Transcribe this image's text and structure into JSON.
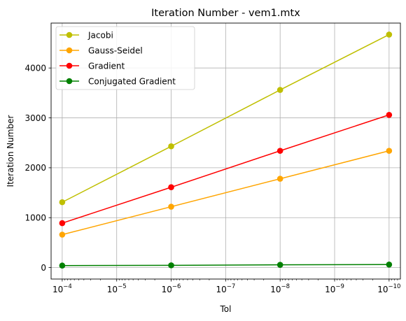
{
  "chart_data": {
    "type": "line",
    "title": "Iteration Number - vem1.mtx",
    "xlabel": "Tol",
    "ylabel": "Iteration Number",
    "x_scale": "log",
    "x_axis_inverted": true,
    "x": [
      0.0001,
      1e-06,
      1e-08,
      1e-10
    ],
    "xlim": [
      0.00016,
      6.2e-11
    ],
    "ylim": [
      -230,
      4900
    ],
    "x_ticks": [
      {
        "value": 0.0001,
        "base": "10",
        "exp": "−4"
      },
      {
        "value": 1e-05,
        "base": "10",
        "exp": "−5"
      },
      {
        "value": 1e-06,
        "base": "10",
        "exp": "−6"
      },
      {
        "value": 1e-07,
        "base": "10",
        "exp": "−7"
      },
      {
        "value": 1e-08,
        "base": "10",
        "exp": "−8"
      },
      {
        "value": 1e-09,
        "base": "10",
        "exp": "−9"
      },
      {
        "value": 1e-10,
        "base": "10",
        "exp": "−10"
      }
    ],
    "y_ticks": [
      {
        "value": 0,
        "label": "0"
      },
      {
        "value": 1000,
        "label": "1000"
      },
      {
        "value": 2000,
        "label": "2000"
      },
      {
        "value": 3000,
        "label": "3000"
      },
      {
        "value": 4000,
        "label": "4000"
      }
    ],
    "grid": true,
    "legend_position": "top-left",
    "series": [
      {
        "name": "Jacobi",
        "color": "#bfbf00",
        "values": [
          1310,
          2430,
          3560,
          4670
        ]
      },
      {
        "name": "Gauss-Seidel",
        "color": "#ffa500",
        "values": [
          660,
          1220,
          1780,
          2340
        ]
      },
      {
        "name": "Gradient",
        "color": "#ff0000",
        "values": [
          890,
          1610,
          2340,
          3060
        ]
      },
      {
        "name": "Conjugated Gradient",
        "color": "#008000",
        "values": [
          40,
          45,
          55,
          60
        ]
      }
    ]
  }
}
